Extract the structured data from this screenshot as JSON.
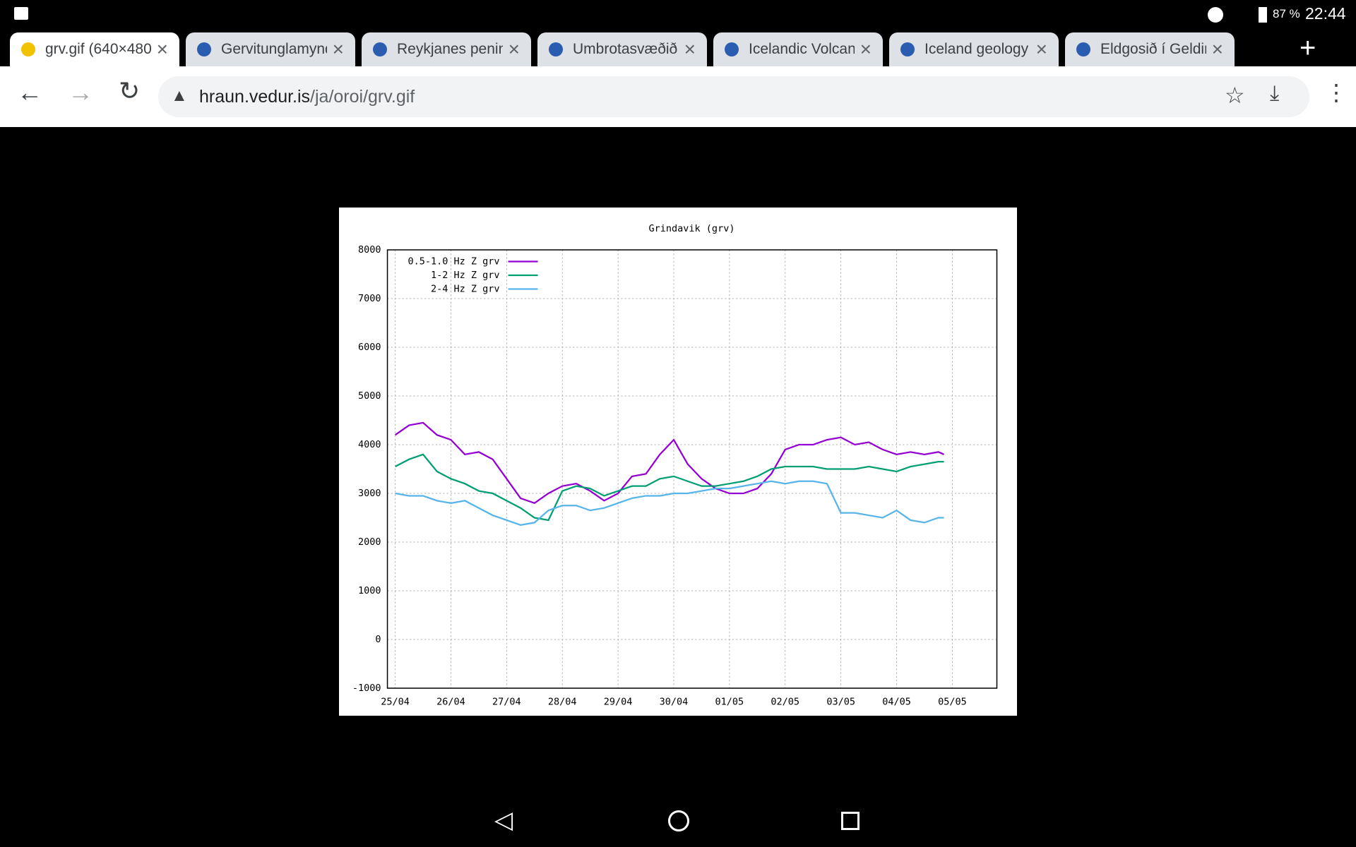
{
  "status": {
    "battery": "87 %",
    "time": "22:44"
  },
  "tabs": [
    "grv.gif (640×480",
    "Gervitunglamynd",
    "Reykjanes penin",
    "Umbrotasvæðið",
    "Icelandic Volcan",
    "Iceland geology",
    "Eldgosið í Geldin"
  ],
  "address": {
    "host": "hraun.vedur.is",
    "path": "/ja/oroi/grv.gif"
  },
  "chart_data": {
    "type": "line",
    "title": "Grindavik (grv)",
    "x": [
      0,
      0.25,
      0.5,
      0.75,
      1,
      1.25,
      1.5,
      1.75,
      2,
      2.25,
      2.5,
      2.75,
      3,
      3.25,
      3.5,
      3.75,
      4,
      4.25,
      4.5,
      4.75,
      5,
      5.25,
      5.5,
      5.75,
      6,
      6.25,
      6.5,
      6.75,
      7,
      7.25,
      7.5,
      7.75,
      8,
      8.25,
      8.5,
      8.75,
      9,
      9.25,
      9.5,
      9.75,
      9.85
    ],
    "series": [
      {
        "name": "0.5-1.0 Hz Z grv",
        "color": "#9400d3",
        "values": [
          4200,
          4400,
          4450,
          4200,
          4100,
          3800,
          3850,
          3700,
          3300,
          2900,
          2800,
          3000,
          3150,
          3200,
          3050,
          2850,
          3000,
          3350,
          3400,
          3800,
          4100,
          3600,
          3300,
          3100,
          3000,
          3000,
          3100,
          3400,
          3900,
          4000,
          4000,
          4100,
          4150,
          4000,
          4050,
          3900,
          3800,
          3850,
          3800,
          3850,
          3800
        ]
      },
      {
        "name": "1-2 Hz Z grv",
        "color": "#009e73",
        "values": [
          3550,
          3700,
          3800,
          3450,
          3300,
          3200,
          3050,
          3000,
          2850,
          2700,
          2500,
          2450,
          3050,
          3150,
          3100,
          2950,
          3050,
          3150,
          3150,
          3300,
          3350,
          3250,
          3150,
          3150,
          3200,
          3250,
          3350,
          3500,
          3550,
          3550,
          3550,
          3500,
          3500,
          3500,
          3550,
          3500,
          3450,
          3550,
          3600,
          3650,
          3650
        ]
      },
      {
        "name": "2-4 Hz Z grv",
        "color": "#56b4e9",
        "values": [
          3000,
          2950,
          2950,
          2850,
          2800,
          2850,
          2700,
          2550,
          2450,
          2350,
          2400,
          2650,
          2750,
          2750,
          2650,
          2700,
          2800,
          2900,
          2950,
          2950,
          3000,
          3000,
          3050,
          3100,
          3100,
          3150,
          3200,
          3250,
          3200,
          3250,
          3250,
          3200,
          2600,
          2600,
          2550,
          2500,
          2650,
          2450,
          2400,
          2500,
          2500
        ]
      }
    ],
    "xlim": [
      -0.14,
      10.8
    ],
    "xticks": [
      {
        "value": 0,
        "label": "25/04"
      },
      {
        "value": 1,
        "label": "26/04"
      },
      {
        "value": 2,
        "label": "27/04"
      },
      {
        "value": 3,
        "label": "28/04"
      },
      {
        "value": 4,
        "label": "29/04"
      },
      {
        "value": 5,
        "label": "30/04"
      },
      {
        "value": 6,
        "label": "01/05"
      },
      {
        "value": 7,
        "label": "02/05"
      },
      {
        "value": 8,
        "label": "03/05"
      },
      {
        "value": 9,
        "label": "04/05"
      },
      {
        "value": 10,
        "label": "05/05"
      }
    ],
    "ylim": [
      -1000,
      8000
    ],
    "yticks": [
      -1000,
      0,
      1000,
      2000,
      3000,
      4000,
      5000,
      6000,
      7000,
      8000
    ],
    "grid": true,
    "legend": "upper left"
  }
}
